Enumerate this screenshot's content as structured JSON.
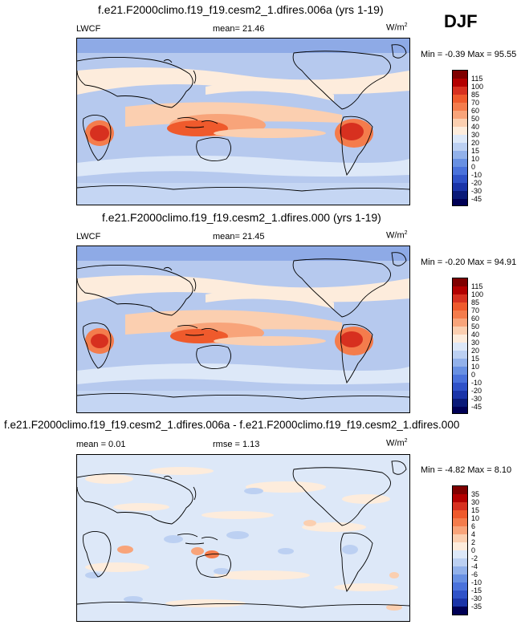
{
  "season": "DJF",
  "panels": [
    {
      "title": "f.e21.F2000climo.f19_f19.cesm2_1.dfires.006a (yrs 1-19)",
      "left_label": "LWCF",
      "center_label": "mean=  21.46",
      "units": "W/m",
      "units_sup": "2",
      "stats": "Min = -0.39 Max =  95.55"
    },
    {
      "title": "f.e21.F2000climo.f19_f19.cesm2_1.dfires.000 (yrs 1-19)",
      "left_label": "LWCF",
      "center_label": "mean=  21.45",
      "units": "W/m",
      "units_sup": "2",
      "stats": "Min = -0.20 Max =  94.91"
    },
    {
      "title": "f.e21.F2000climo.f19_f19.cesm2_1.dfires.006a - f.e21.F2000climo.f19_f19.cesm2_1.dfires.000",
      "left_label": "mean =  0.01",
      "center_label": "rmse =   1.13",
      "units": "W/m",
      "units_sup": "2",
      "stats": "Min = -4.82 Max =   8.10"
    }
  ],
  "colorbars": {
    "abs_levels": [
      "115",
      "100",
      "85",
      "70",
      "60",
      "50",
      "40",
      "30",
      "20",
      "15",
      "10",
      "0",
      "-10",
      "-20",
      "-30",
      "-45"
    ],
    "abs_colors": [
      "#7f0000",
      "#b30000",
      "#d7301f",
      "#ef5a2c",
      "#f47c4c",
      "#f8a47a",
      "#fbcfb0",
      "#fdecdc",
      "#dde8f8",
      "#bcd0f2",
      "#92b1ea",
      "#6890e2",
      "#4a72db",
      "#2f52c8",
      "#1a34a8",
      "#0a1a78",
      "#000055"
    ],
    "diff_levels": [
      "35",
      "30",
      "15",
      "10",
      "6",
      "4",
      "2",
      "0",
      "-2",
      "-4",
      "-6",
      "-10",
      "-15",
      "-30",
      "-35"
    ],
    "diff_colors": [
      "#7f0000",
      "#b30000",
      "#d7301f",
      "#ef5a2c",
      "#f47c4c",
      "#f8a47a",
      "#fbcfb0",
      "#fdecdc",
      "#dde8f8",
      "#bcd0f2",
      "#92b1ea",
      "#6890e2",
      "#4a72db",
      "#2f52c8",
      "#1a34a8",
      "#000055"
    ]
  }
}
